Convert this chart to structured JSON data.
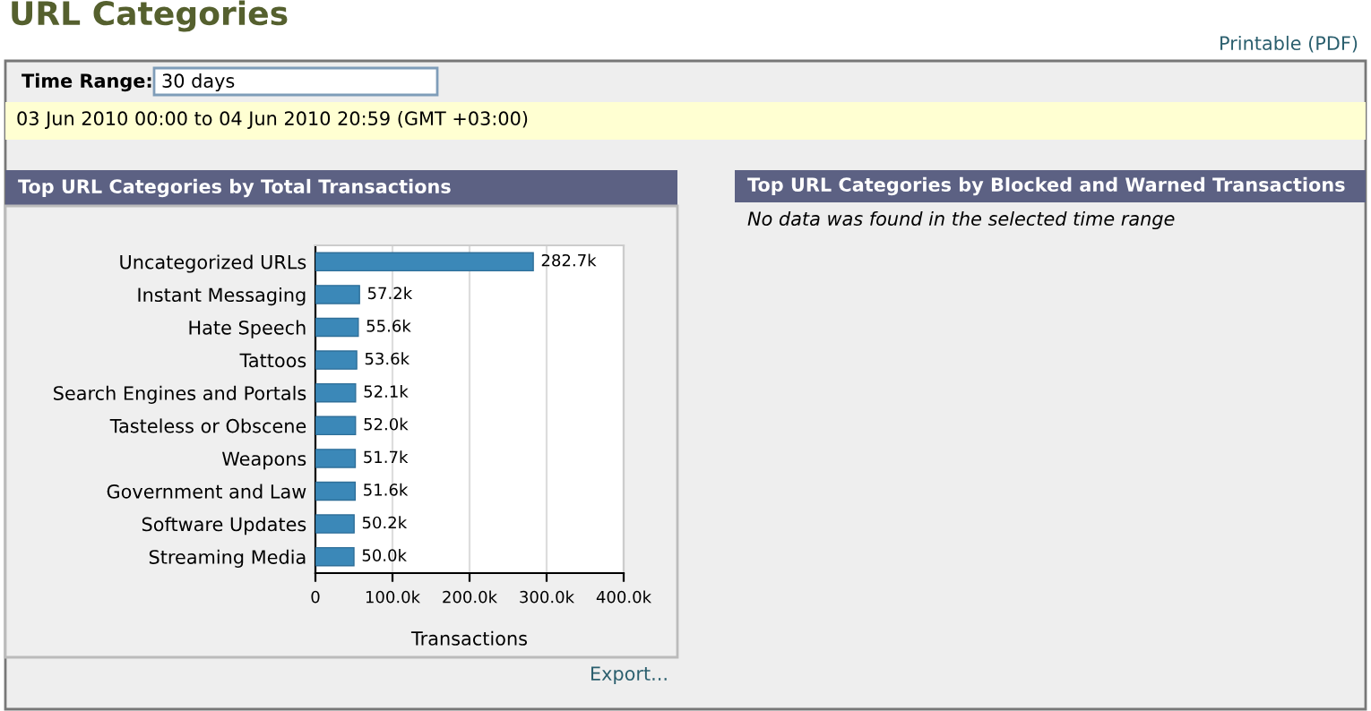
{
  "chart_data": {
    "type": "bar",
    "orientation": "horizontal",
    "title": "Top URL Categories by Total Transactions",
    "xlabel": "Transactions",
    "categories": [
      "Uncategorized URLs",
      "Instant Messaging",
      "Hate Speech",
      "Tattoos",
      "Search Engines and Portals",
      "Tasteless or Obscene",
      "Weapons",
      "Government and Law",
      "Software Updates",
      "Streaming Media"
    ],
    "values": [
      282700,
      57200,
      55600,
      53600,
      52100,
      52000,
      51700,
      51600,
      50200,
      50000
    ],
    "value_labels": [
      "282.7k",
      "57.2k",
      "55.6k",
      "53.6k",
      "52.1k",
      "52.0k",
      "51.7k",
      "51.6k",
      "50.2k",
      "50.0k"
    ],
    "color": "#3b88b8",
    "xlim": [
      0,
      400000
    ],
    "xticks": [
      0,
      {
        "value": 100000,
        "label": "100.0k"
      },
      {
        "value": 200000,
        "label": "200.0k"
      },
      {
        "value": 300000,
        "label": "300.0k"
      },
      {
        "value": 400000,
        "label": "400.0k"
      }
    ],
    "grid": "x",
    "legend": false,
    "annotations": [
      "URL Categories",
      "Printable (PDF)",
      "Time Range:",
      "30 days",
      "03 Jun 2010 00:00 to 04 Jun 2010 20:59 (GMT +03:00)",
      "Top URL Categories by Blocked and Warned Transactions",
      "No data was found in the selected time range",
      "Export..."
    ]
  }
}
